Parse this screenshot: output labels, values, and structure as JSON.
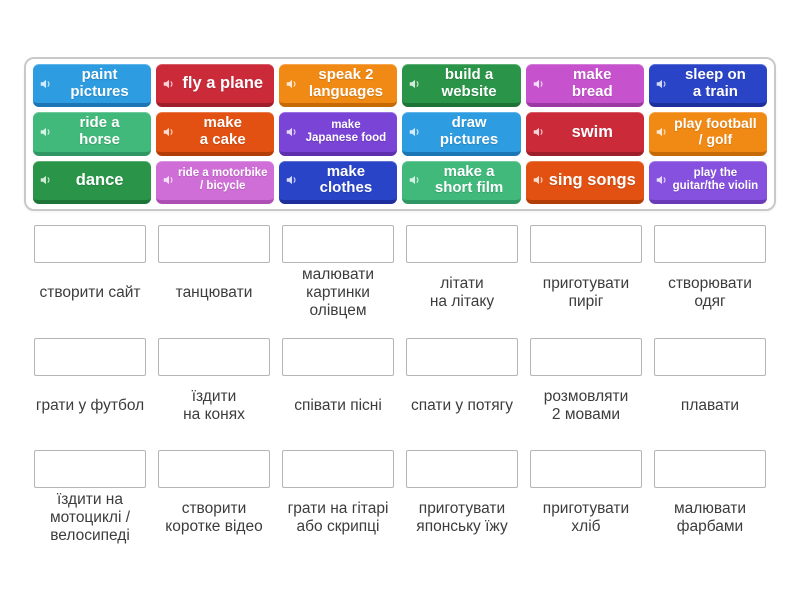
{
  "activity": {
    "type_hint": "match-up language exercise",
    "icon": "speaker-icon"
  },
  "palette": {
    "blue": {
      "bg": "#2d9ce1",
      "edge": "#1a76b4"
    },
    "red": {
      "bg": "#cb2a39",
      "edge": "#9e1f2b"
    },
    "orange": {
      "bg": "#f18a15",
      "edge": "#c56a05"
    },
    "green": {
      "bg": "#2a9549",
      "edge": "#1e7337"
    },
    "magenta": {
      "bg": "#c653cd",
      "edge": "#9c3aa3"
    },
    "royal": {
      "bg": "#2a44c8",
      "edge": "#1c2f9c"
    },
    "emerald": {
      "bg": "#41b97b",
      "edge": "#2f9763"
    },
    "orangered": {
      "bg": "#e25112",
      "edge": "#b23d07"
    },
    "purple": {
      "bg": "#7a44d6",
      "edge": "#5e30ad"
    },
    "orchidlight": {
      "bg": "#d06ed8",
      "edge": "#ae4fb6"
    },
    "violet": {
      "bg": "#8751e0",
      "edge": "#6a3ab8"
    }
  },
  "tiles": [
    {
      "id": "paint-pictures",
      "label": "paint\npictures",
      "color": "blue",
      "size": "md"
    },
    {
      "id": "fly-a-plane",
      "label": "fly a plane",
      "color": "red",
      "size": "lg"
    },
    {
      "id": "speak-2-languages",
      "label": "speak 2\nlanguages",
      "color": "orange",
      "size": "md"
    },
    {
      "id": "build-a-website",
      "label": "build a\nwebsite",
      "color": "green",
      "size": "md"
    },
    {
      "id": "make-bread",
      "label": "make\nbread",
      "color": "magenta",
      "size": "md"
    },
    {
      "id": "sleep-on-a-train",
      "label": "sleep on\na train",
      "color": "royal",
      "size": "md"
    },
    {
      "id": "ride-a-horse",
      "label": "ride a\nhorse",
      "color": "emerald",
      "size": "md"
    },
    {
      "id": "make-a-cake",
      "label": "make\na cake",
      "color": "orangered",
      "size": "md"
    },
    {
      "id": "make-japanese-food",
      "label": "make\nJapanese food",
      "color": "purple",
      "size": "xs"
    },
    {
      "id": "draw-pictures",
      "label": "draw\npictures",
      "color": "blue",
      "size": "md"
    },
    {
      "id": "swim",
      "label": "swim",
      "color": "red",
      "size": "lg"
    },
    {
      "id": "play-football-golf",
      "label": "play football\n/ golf",
      "color": "orange",
      "size": "sm"
    },
    {
      "id": "dance",
      "label": "dance",
      "color": "green",
      "size": "lg"
    },
    {
      "id": "ride-a-motorbike",
      "label": "ride a motorbike\n/ bicycle",
      "color": "orchidlight",
      "size": "xs"
    },
    {
      "id": "make-clothes",
      "label": "make\nclothes",
      "color": "royal",
      "size": "md"
    },
    {
      "id": "make-a-short-film",
      "label": "make a\nshort film",
      "color": "emerald",
      "size": "md"
    },
    {
      "id": "sing-songs",
      "label": "sing songs",
      "color": "orangered",
      "size": "lg"
    },
    {
      "id": "play-guitar-violin",
      "label": "play the\nguitar/the violin",
      "color": "violet",
      "size": "xs"
    }
  ],
  "answer_rows": [
    [
      "створити сайт",
      "танцювати",
      "малювати\nкартинки\nолівцем",
      "літати\nна літаку",
      "приготувати\nпиріг",
      "створювати\nодяг"
    ],
    [
      "грати у футбол",
      "їздити\nна конях",
      "співати пісні",
      "спати у потягу",
      "розмовляти\n2 мовами",
      "плавати"
    ],
    [
      "їздити на\nмотоциклі /\nвелосипеді",
      "створити\nкоротке відео",
      "грати на гітарі\nабо скрипці",
      "приготувати\nяпонську їжу",
      "приготувати\nхліб",
      "малювати\nфарбами"
    ]
  ]
}
